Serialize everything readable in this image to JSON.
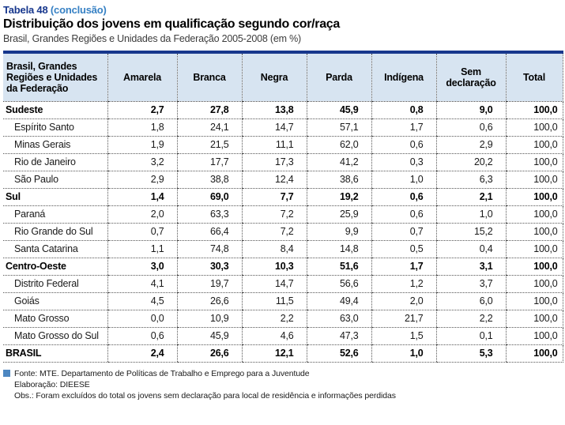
{
  "header": {
    "table_label": "Tabela 48",
    "table_label_note": "(conclusão)",
    "title": "Distribuição dos jovens em qualificação segundo cor/raça",
    "subtitle": "Brasil, Grandes Regiões e Unidades da Federação 2005-2008 (em %)"
  },
  "chart_data": {
    "type": "table",
    "title": "Distribuição dos jovens em qualificação segundo cor/raça",
    "subtitle": "Brasil, Grandes Regiões e Unidades da Federação 2005-2008 (em %)",
    "unit": "%",
    "row_header": "Brasil, Grandes Regiões e Unidades da Federação",
    "columns": [
      "Amarela",
      "Branca",
      "Negra",
      "Parda",
      "Indígena",
      "Sem declaração",
      "Total"
    ],
    "rows": [
      {
        "label": "Sudeste",
        "section": true,
        "values": [
          "2,7",
          "27,8",
          "13,8",
          "45,9",
          "0,8",
          "9,0",
          "100,0"
        ]
      },
      {
        "label": "Espírito Santo",
        "section": false,
        "values": [
          "1,8",
          "24,1",
          "14,7",
          "57,1",
          "1,7",
          "0,6",
          "100,0"
        ]
      },
      {
        "label": "Minas Gerais",
        "section": false,
        "values": [
          "1,9",
          "21,5",
          "11,1",
          "62,0",
          "0,6",
          "2,9",
          "100,0"
        ]
      },
      {
        "label": "Rio de Janeiro",
        "section": false,
        "values": [
          "3,2",
          "17,7",
          "17,3",
          "41,2",
          "0,3",
          "20,2",
          "100,0"
        ]
      },
      {
        "label": "São Paulo",
        "section": false,
        "values": [
          "2,9",
          "38,8",
          "12,4",
          "38,6",
          "1,0",
          "6,3",
          "100,0"
        ]
      },
      {
        "label": "Sul",
        "section": true,
        "values": [
          "1,4",
          "69,0",
          "7,7",
          "19,2",
          "0,6",
          "2,1",
          "100,0"
        ]
      },
      {
        "label": "Paraná",
        "section": false,
        "values": [
          "2,0",
          "63,3",
          "7,2",
          "25,9",
          "0,6",
          "1,0",
          "100,0"
        ]
      },
      {
        "label": "Rio Grande do Sul",
        "section": false,
        "values": [
          "0,7",
          "66,4",
          "7,2",
          "9,9",
          "0,7",
          "15,2",
          "100,0"
        ]
      },
      {
        "label": "Santa Catarina",
        "section": false,
        "values": [
          "1,1",
          "74,8",
          "8,4",
          "14,8",
          "0,5",
          "0,4",
          "100,0"
        ]
      },
      {
        "label": "Centro-Oeste",
        "section": true,
        "values": [
          "3,0",
          "30,3",
          "10,3",
          "51,6",
          "1,7",
          "3,1",
          "100,0"
        ]
      },
      {
        "label": "Distrito Federal",
        "section": false,
        "values": [
          "4,1",
          "19,7",
          "14,7",
          "56,6",
          "1,2",
          "3,7",
          "100,0"
        ]
      },
      {
        "label": "Goiás",
        "section": false,
        "values": [
          "4,5",
          "26,6",
          "11,5",
          "49,4",
          "2,0",
          "6,0",
          "100,0"
        ]
      },
      {
        "label": "Mato Grosso",
        "section": false,
        "values": [
          "0,0",
          "10,9",
          "2,2",
          "63,0",
          "21,7",
          "2,2",
          "100,0"
        ]
      },
      {
        "label": "Mato Grosso do Sul",
        "section": false,
        "values": [
          "0,6",
          "45,9",
          "4,6",
          "47,3",
          "1,5",
          "0,1",
          "100,0"
        ]
      },
      {
        "label": "BRASIL",
        "section": true,
        "values": [
          "2,4",
          "26,6",
          "12,1",
          "52,6",
          "1,0",
          "5,3",
          "100,0"
        ]
      }
    ]
  },
  "footer": {
    "fonte": "Fonte: MTE. Departamento de Políticas de Trabalho e Emprego para a Juventude",
    "elaboracao": "Elaboração: DIEESE",
    "obs": "Obs.: Foram excluídos do total os jovens sem declaração para local de residência e informações perdidas"
  },
  "colors": {
    "navy": "#17378d",
    "accent_blue": "#3781c4",
    "header_bg": "#d7e4f1",
    "footer_marker": "#4d87c1"
  }
}
